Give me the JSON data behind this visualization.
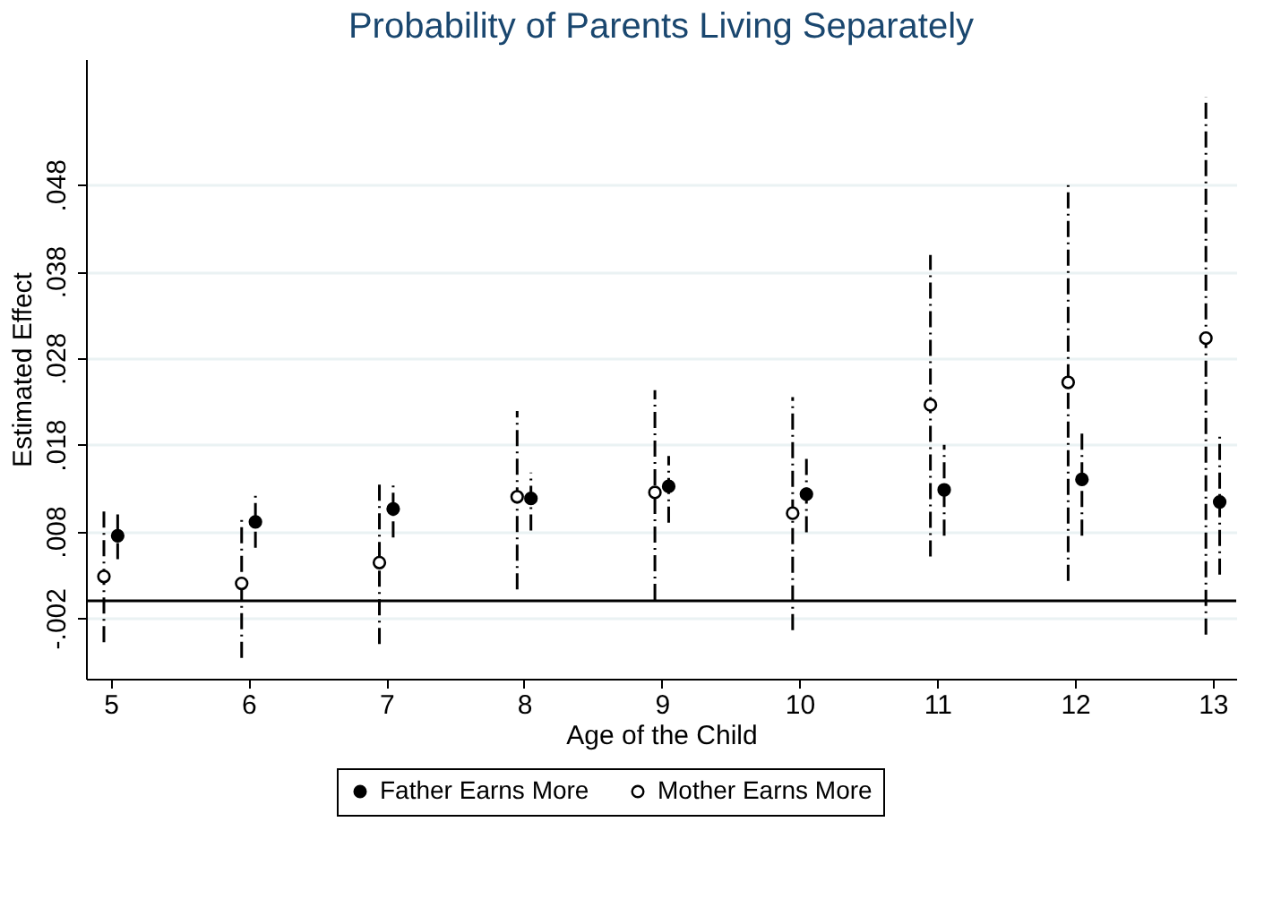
{
  "chart_data": {
    "type": "scatter",
    "title": "Probability of Parents Living Separately",
    "xlabel": "Age of the Child",
    "ylabel": "Estimated Effect",
    "xlim": [
      4.82,
      13.17
    ],
    "xticks": [
      5,
      6,
      7,
      8,
      9,
      10,
      11,
      12,
      13
    ],
    "ylim": [
      -0.009,
      0.0625
    ],
    "yticks": [
      {
        "value": -0.002,
        "label": "-.002"
      },
      {
        "value": 0.008,
        "label": ".008"
      },
      {
        "value": 0.018,
        "label": ".018"
      },
      {
        "value": 0.028,
        "label": ".028"
      },
      {
        "value": 0.038,
        "label": ".038"
      },
      {
        "value": 0.048,
        "label": ".048"
      }
    ],
    "grid": "y",
    "legend": "bottom",
    "marker": "circle",
    "line_style": "dashed",
    "ref_lines": [
      {
        "axis": "y",
        "value": 0,
        "color": "#000000"
      }
    ],
    "series": [
      {
        "name": "Father Earns More",
        "color": "#000000",
        "x": [
          5.05,
          6.05,
          7.05,
          8.05,
          9.05,
          10.05,
          11.05,
          12.05,
          13.05
        ],
        "values": [
          0.0075,
          0.0091,
          0.0106,
          0.0118,
          0.0132,
          0.0123,
          0.0128,
          0.014,
          0.0114
        ],
        "errors": [
          [
            0.0048,
            0.0103
          ],
          [
            0.0061,
            0.0122
          ],
          [
            0.0073,
            0.0139
          ],
          [
            0.0081,
            0.0148
          ],
          [
            0.009,
            0.0167
          ],
          [
            0.0079,
            0.0168
          ],
          [
            0.0075,
            0.018
          ],
          [
            0.0075,
            0.0196
          ],
          [
            0.003,
            0.0194
          ]
        ]
      },
      {
        "name": "Mother Earns More",
        "color": "#000000",
        "x": [
          4.95,
          5.95,
          6.95,
          7.95,
          8.95,
          9.95,
          10.95,
          11.95,
          12.95
        ],
        "values": [
          0.0028,
          0.002,
          0.0044,
          0.012,
          0.0125,
          0.0101,
          0.0226,
          0.0252,
          0.0303
        ],
        "errors": [
          [
            -0.0048,
            0.0106
          ],
          [
            -0.0066,
            0.0099
          ],
          [
            -0.005,
            0.0139
          ],
          [
            0.0013,
            0.0219
          ],
          [
            0.0001,
            0.0243
          ],
          [
            -0.0034,
            0.0235
          ],
          [
            0.0051,
            0.0399
          ],
          [
            0.0023,
            0.048
          ],
          [
            -0.0039,
            0.0581
          ]
        ]
      }
    ]
  }
}
